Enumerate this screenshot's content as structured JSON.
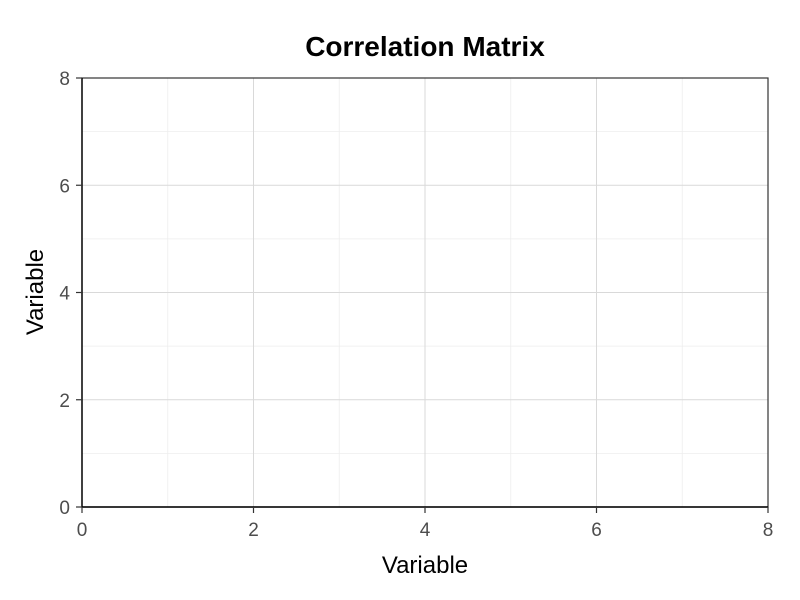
{
  "chart_data": {
    "type": "heatmap",
    "title": "Correlation Matrix",
    "xlabel": "Variable",
    "ylabel": "Variable",
    "xlim": [
      0,
      8
    ],
    "ylim": [
      0,
      8
    ],
    "x_ticks": [
      0,
      2,
      4,
      6,
      8
    ],
    "y_ticks": [
      0,
      2,
      4,
      6,
      8
    ],
    "x_minor_ticks": [
      1,
      3,
      5,
      7
    ],
    "y_minor_ticks": [
      1,
      3,
      5,
      7
    ],
    "grid": true,
    "cells": [],
    "colors": {
      "grid_major": "#d9d9d9",
      "grid_minor": "#ededed",
      "tick_text": "#4d4d4d",
      "border": "#333333"
    }
  }
}
